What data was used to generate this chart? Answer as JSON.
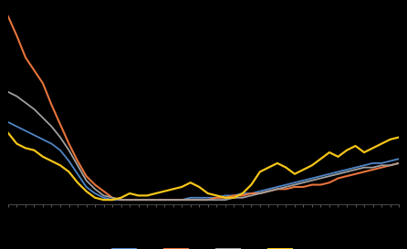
{
  "background_color": "#000000",
  "line_colors": [
    "#4f86c6",
    "#e8743b",
    "#a0a0a0",
    "#f5c518"
  ],
  "series": {
    "blue": [
      0.48,
      0.46,
      0.44,
      0.42,
      0.4,
      0.38,
      0.35,
      0.3,
      0.24,
      0.18,
      0.15,
      0.13,
      0.12,
      0.12,
      0.12,
      0.12,
      0.12,
      0.12,
      0.12,
      0.12,
      0.12,
      0.13,
      0.13,
      0.13,
      0.13,
      0.14,
      0.14,
      0.15,
      0.15,
      0.16,
      0.17,
      0.18,
      0.19,
      0.2,
      0.21,
      0.22,
      0.23,
      0.24,
      0.25,
      0.26,
      0.27,
      0.28,
      0.29,
      0.29,
      0.3,
      0.31
    ],
    "orange": [
      0.97,
      0.88,
      0.78,
      0.72,
      0.66,
      0.56,
      0.47,
      0.38,
      0.3,
      0.23,
      0.19,
      0.16,
      0.13,
      0.12,
      0.12,
      0.12,
      0.12,
      0.12,
      0.12,
      0.12,
      0.12,
      0.12,
      0.12,
      0.12,
      0.13,
      0.13,
      0.14,
      0.14,
      0.15,
      0.15,
      0.16,
      0.17,
      0.17,
      0.18,
      0.18,
      0.19,
      0.19,
      0.2,
      0.22,
      0.23,
      0.24,
      0.25,
      0.26,
      0.27,
      0.28,
      0.29
    ],
    "gray": [
      0.62,
      0.6,
      0.57,
      0.54,
      0.5,
      0.46,
      0.41,
      0.35,
      0.28,
      0.21,
      0.17,
      0.14,
      0.13,
      0.12,
      0.12,
      0.12,
      0.12,
      0.12,
      0.12,
      0.12,
      0.12,
      0.12,
      0.12,
      0.12,
      0.12,
      0.12,
      0.13,
      0.13,
      0.14,
      0.15,
      0.16,
      0.17,
      0.18,
      0.19,
      0.2,
      0.21,
      0.22,
      0.23,
      0.24,
      0.25,
      0.26,
      0.27,
      0.27,
      0.28,
      0.28,
      0.29
    ],
    "yellow": [
      0.43,
      0.38,
      0.36,
      0.35,
      0.32,
      0.3,
      0.28,
      0.25,
      0.2,
      0.16,
      0.13,
      0.12,
      0.12,
      0.13,
      0.15,
      0.14,
      0.14,
      0.15,
      0.16,
      0.17,
      0.18,
      0.2,
      0.18,
      0.15,
      0.14,
      0.13,
      0.13,
      0.15,
      0.19,
      0.25,
      0.27,
      0.29,
      0.27,
      0.24,
      0.26,
      0.28,
      0.31,
      0.34,
      0.32,
      0.35,
      0.37,
      0.34,
      0.36,
      0.38,
      0.4,
      0.41
    ]
  },
  "n_points": 46,
  "ylim": [
    0.1,
    1.0
  ],
  "xlim": [
    0,
    45
  ],
  "legend_colors": [
    "#4f86c6",
    "#e8743b",
    "#a0a0a0",
    "#f5c518"
  ],
  "spine_color": "#555555",
  "tick_color": "#666666"
}
